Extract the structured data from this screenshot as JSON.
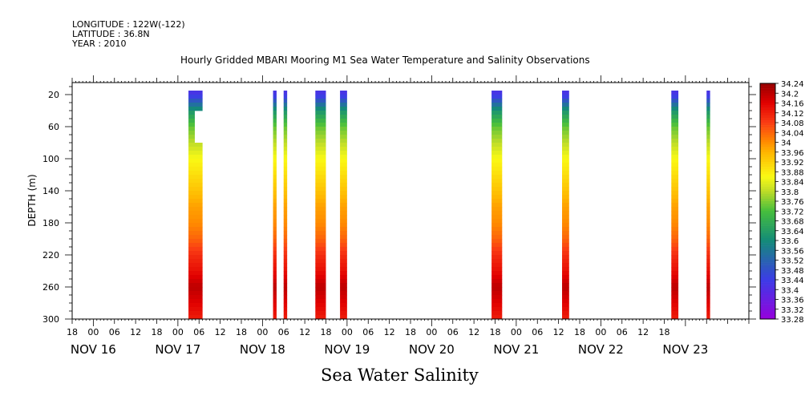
{
  "header": {
    "longitude": "LONGITUDE : 122W(-122)",
    "latitude": "LATITUDE : 36.8N",
    "year": "YEAR : 2010"
  },
  "chart_data": {
    "type": "heatmap",
    "title": "Hourly Gridded MBARI Mooring M1 Sea Water Temperature and Salinity Observations",
    "bottom_title": "Sea Water Salinity",
    "xlabel": "",
    "ylabel": "DEPTH (m)",
    "x_range_hours_from_nov16_00": [
      -6,
      186
    ],
    "y_range_m": [
      300,
      5
    ],
    "x_tick_labels": [
      "18",
      "00",
      "06",
      "12",
      "18",
      "00",
      "06",
      "12",
      "18",
      "00",
      "06",
      "12",
      "18",
      "00",
      "06",
      "12",
      "18",
      "00",
      "06",
      "12",
      "18",
      "00",
      "06",
      "12",
      "18",
      "00",
      "06",
      "12",
      "18"
    ],
    "date_labels": [
      {
        "label": "NOV 16",
        "day": 16
      },
      {
        "label": "NOV 17",
        "day": 17
      },
      {
        "label": "NOV 18",
        "day": 18
      },
      {
        "label": "NOV 19",
        "day": 19
      },
      {
        "label": "NOV 20",
        "day": 20
      },
      {
        "label": "NOV 21",
        "day": 21
      },
      {
        "label": "NOV 22",
        "day": 22
      },
      {
        "label": "NOV 23",
        "day": 23
      }
    ],
    "y_ticks": [
      "20",
      "60",
      "100",
      "140",
      "180",
      "220",
      "260",
      "300"
    ],
    "colorbar_labels": [
      "34.24",
      "34.2",
      "34.16",
      "34.12",
      "34.08",
      "34.04",
      "34",
      "33.96",
      "33.92",
      "33.88",
      "33.84",
      "33.8",
      "33.76",
      "33.72",
      "33.68",
      "33.64",
      "33.6",
      "33.56",
      "33.52",
      "33.48",
      "33.44",
      "33.4",
      "33.36",
      "33.32",
      "33.28"
    ],
    "columns": [
      {
        "start": "Nov 17 03:00",
        "end": "Nov 17 07:00",
        "depth_top": 20,
        "gap": [
          40,
          80
        ]
      },
      {
        "start": "Nov 18 03:00",
        "end": "Nov 18 04:00",
        "depth_top": 20
      },
      {
        "start": "Nov 18 06:00",
        "end": "Nov 18 07:00",
        "depth_top": 20
      },
      {
        "start": "Nov 18 15:00",
        "end": "Nov 18 18:00",
        "depth_top": 20
      },
      {
        "start": "Nov 18 22:00",
        "end": "Nov 19 00:00",
        "depth_top": 20
      },
      {
        "start": "Nov 20 17:00",
        "end": "Nov 20 20:00",
        "depth_top": 20
      },
      {
        "start": "Nov 21 13:00",
        "end": "Nov 21 15:00",
        "depth_top": 20
      },
      {
        "start": "Nov 22 20:00",
        "end": "Nov 22 22:00",
        "depth_top": 20
      },
      {
        "start": "Nov 23 06:00",
        "end": "Nov 23 07:00",
        "depth_top": 20
      }
    ],
    "salinity_profile": [
      {
        "depth": 20,
        "value": 33.42
      },
      {
        "depth": 40,
        "value": 33.62
      },
      {
        "depth": 60,
        "value": 33.74
      },
      {
        "depth": 80,
        "value": 33.8
      },
      {
        "depth": 100,
        "value": 33.86
      },
      {
        "depth": 120,
        "value": 33.9
      },
      {
        "depth": 140,
        "value": 33.94
      },
      {
        "depth": 160,
        "value": 33.98
      },
      {
        "depth": 180,
        "value": 34.0
      },
      {
        "depth": 200,
        "value": 34.04
      },
      {
        "depth": 220,
        "value": 34.1
      },
      {
        "depth": 240,
        "value": 34.14
      },
      {
        "depth": 260,
        "value": 34.2
      },
      {
        "depth": 280,
        "value": 34.16
      },
      {
        "depth": 300,
        "value": 34.12
      }
    ],
    "grid": false,
    "legend": "right colorbar"
  }
}
